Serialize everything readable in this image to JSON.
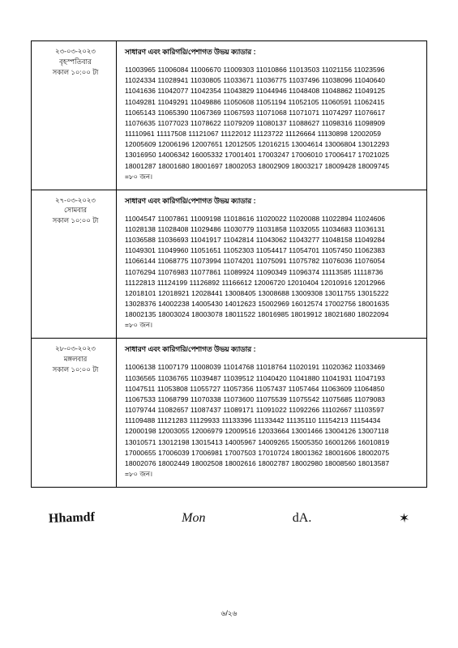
{
  "rows": [
    {
      "date_bn": "২৩-০৩-২০২৩",
      "day_bn": "বৃহস্পতিবার",
      "time_bn": "সকাল ১০:০০ টা",
      "header_bn": "সাধারণ এবং কারিগরি/পেশাগত উভয় ক্যাডার :",
      "ids": "11003965 11006084 11006670 11009303 11010866 11013503 11021156 11023596\n11024334 11028941 11030805 11033671 11036775 11037496 11038096 11040640\n11041636 11042077 11042354 11043829 11044946 11048408 11048862 11049125\n11049281 11049291 11049886 11050608 11051194 11052105 11060591 11062415\n11065143 11065390 11067369 11067593 11071068 11071071 11074297 11076617\n11076635 11077023 11078622 11079209 11080137 11088627 11098316 11098909\n11110961 11117508 11121067 11122012 11123722 11126664 11130898 12002059\n12005609 12006196 12007651 12012505 12016215 13004614 13006804 13012293\n13016950 14006342 16005332 17001401 17003247 17006010 17006417 17021025\n18001287 18001680 18001697 18002053 18002909 18003217 18009428 18009745",
      "count_bn": "=৮০ জন।"
    },
    {
      "date_bn": "২৭-০৩-২০২৩",
      "day_bn": "সোমবার",
      "time_bn": "সকাল ১০:০০ টা",
      "header_bn": "সাধারণ এবং কারিগরি/পেশাগত উভয় ক্যাডার :",
      "ids": "11004547 11007861 11009198 11018616 11020022 11020088 11022894 11024606\n11028138 11028408 11029486 11030779 11031858 11032055 11034683 11036131\n11036588 11036693 11041917 11042814 11043062 11043277 11048158 11049284\n11049301 11049960 11051651 11052303 11054417 11054701 11057450 11062383\n11066144 11068775 11073994 11074201 11075091 11075782 11076036 11076054\n11076294 11076983 11077861 11089924 11090349 11096374 11113585 11118736\n11122813 11124199 11126892 11166612 12006720 12010404 12010916 12012966\n12018101 12018921 12028441 13008405 13008688 13009308 13011755 13015222\n13028376 14002238 14005430 14012623 15002969 16012574 17002756 18001635\n18002135 18003024 18003078 18011522 18016985 18019912 18021680 18022094",
      "count_bn": "=৮০ জন।"
    },
    {
      "date_bn": "২৮-০৩-২০২৩",
      "day_bn": "মঙ্গলবার",
      "time_bn": "সকাল ১০:০০ টা",
      "header_bn": "সাধারণ এবং কারিগরি/পেশাগত উভয় ক্যাডার :",
      "ids": "11006138 11007179 11008039 11014768 11018764 11020191 11020362 11033469\n11036565 11036765 11039487 11039512 11040420 11041880 11041931 11047193\n11047511 11053808 11055727 11057356 11057437 11057464 11063609 11064850\n11067533 11068799 11070338 11073600 11075539 11075542 11075685 11079083\n11079744 11082657 11087437 11089171 11091022 11092266 11102667 11103597\n11109488 11121283 11129933 11133396 11133442 11135110 11154213 11154434\n12000198 12003055 12006979 12009516 12033664 13001466 13004126 13007118\n13010571 13012198 13015413 14005967 14009265 15005350 16001266 16010819\n17000655 17006039 17006981 17007503 17010724 18001362 18001606 18002075\n18002076 18002449 18002508 18002616 18002787 18002980 18008560 18013587",
      "count_bn": "=৮০ জন।"
    }
  ],
  "signatures": [
    "Hhamdf",
    "Mon",
    "dA.",
    "✶"
  ],
  "page_number": "৬/২৬"
}
